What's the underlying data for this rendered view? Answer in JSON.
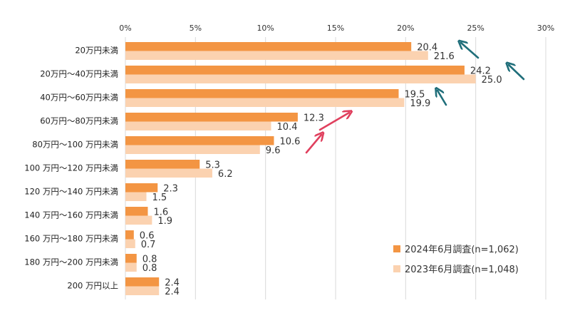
{
  "chart_data": {
    "type": "bar",
    "orientation": "horizontal",
    "categories": [
      "20万円未満",
      "20万円～40万円未満",
      "40万円～60万円未満",
      "60万円～80万円未満",
      "80万円～100 万円未満",
      "100 万円～120 万円未満",
      "120 万円～140 万円未満",
      "140 万円～160 万円未満",
      "160 万円～180 万円未満",
      "180 万円～200 万円未満",
      "200 万円以上"
    ],
    "series": [
      {
        "name": "2024年6月調査(n=1,062)",
        "color": "#F39543",
        "values": [
          20.4,
          24.2,
          19.5,
          12.3,
          10.6,
          5.3,
          2.3,
          1.6,
          0.6,
          0.8,
          2.4
        ],
        "labels": [
          "20.4",
          "24.2",
          "19.5",
          "12.3",
          "10.6",
          "5.3",
          "2.3",
          "1.6",
          "0.6",
          "0.8",
          "2.4"
        ]
      },
      {
        "name": "2023年6月調査(n=1,048)",
        "color": "#FBD2B0",
        "values": [
          21.6,
          25.0,
          19.9,
          10.4,
          9.6,
          6.2,
          1.5,
          1.9,
          0.7,
          0.8,
          2.4
        ],
        "labels": [
          "21.6",
          "25.0",
          "19.9",
          "10.4",
          "9.6",
          "6.2",
          "1.5",
          "1.9",
          "0.7",
          "0.8",
          "2.4"
        ]
      }
    ],
    "xlim": [
      0,
      30
    ],
    "x_ticks": [
      0,
      5,
      10,
      15,
      20,
      25,
      30
    ],
    "x_tick_labels": [
      "0%",
      "5%",
      "10%",
      "15%",
      "20%",
      "25%",
      "30%"
    ],
    "x_axis_position": "top",
    "grid": true,
    "legend_placement": "bottom-right",
    "annotations": [
      {
        "type": "arrow",
        "direction": "down",
        "color": "#1F6E7A",
        "category": "20万円未満"
      },
      {
        "type": "arrow",
        "direction": "down",
        "color": "#1F6E7A",
        "category": "20万円～40万円未満"
      },
      {
        "type": "arrow",
        "direction": "down",
        "color": "#1F6E7A",
        "category": "40万円～60万円未満"
      },
      {
        "type": "arrow",
        "direction": "up",
        "color": "#E0405E",
        "category": "60万円～80万円未満"
      },
      {
        "type": "arrow",
        "direction": "up",
        "color": "#E0405E",
        "category": "80万円～100 万円未満"
      }
    ]
  }
}
